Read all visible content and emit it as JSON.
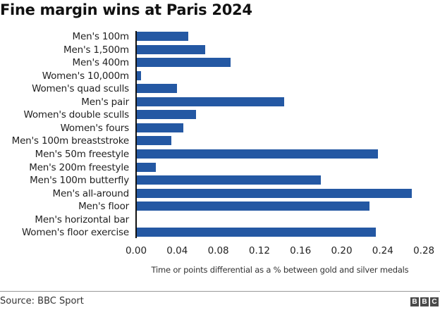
{
  "title": "Fine margin wins at Paris 2024",
  "source": "Source: BBC Sport",
  "logo": [
    "B",
    "B",
    "C"
  ],
  "colors": {
    "bar": "#2458a3",
    "axis": "#111111",
    "text": "#222222"
  },
  "chart_data": {
    "type": "bar",
    "orientation": "horizontal",
    "title": "Fine margin wins at Paris 2024",
    "xlabel": "Time or points differential as a % between gold and silver medals",
    "ylabel": "",
    "xlim": [
      0,
      0.28
    ],
    "xticks": [
      "0.00",
      "0.04",
      "0.08",
      "0.12",
      "0.16",
      "0.20",
      "0.24",
      "0.28"
    ],
    "grid": false,
    "legend": null,
    "categories": [
      "Men's 100m",
      "Men's 1,500m",
      "Men's 400m",
      "Women's 10,000m",
      "Women's quad sculls",
      "Men's pair",
      "Women's double sculls",
      "Women's fours",
      "Men's 100m breaststroke",
      "Men's 50m freestyle",
      "Men's 200m freestyle",
      "Men's 100m butterfly",
      "Men's all-around",
      "Men's floor",
      "Men's horizontal bar",
      "Women's floor exercise"
    ],
    "values": [
      0.051,
      0.067,
      0.092,
      0.005,
      0.04,
      0.144,
      0.058,
      0.046,
      0.034,
      0.235,
      0.019,
      0.18,
      0.268,
      0.227,
      0.0,
      0.233
    ]
  }
}
